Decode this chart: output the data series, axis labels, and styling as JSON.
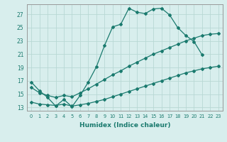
{
  "title": "",
  "xlabel": "Humidex (Indice chaleur)",
  "xlim": [
    -0.5,
    23.5
  ],
  "ylim": [
    12.5,
    28.5
  ],
  "xticks": [
    0,
    1,
    2,
    3,
    4,
    5,
    6,
    7,
    8,
    9,
    10,
    11,
    12,
    13,
    14,
    15,
    16,
    17,
    18,
    19,
    20,
    21,
    22,
    23
  ],
  "yticks": [
    13,
    15,
    17,
    19,
    21,
    23,
    25,
    27
  ],
  "bg_color": "#d8eeed",
  "grid_color": "#b8d8d4",
  "line_color": "#1a7a6e",
  "line1_x": [
    0,
    1,
    2,
    3,
    4,
    5,
    6,
    7,
    8,
    9,
    10,
    11,
    12,
    13,
    14,
    15,
    16,
    17,
    18,
    19,
    20,
    21
  ],
  "line1_y": [
    16.8,
    15.5,
    14.5,
    13.2,
    14.2,
    13.1,
    14.8,
    16.8,
    19.1,
    22.3,
    25.1,
    25.5,
    27.9,
    27.3,
    27.1,
    27.8,
    27.9,
    26.9,
    25.0,
    23.8,
    22.9,
    20.9
  ],
  "line2_x": [
    0,
    1,
    2,
    3,
    4,
    5,
    6,
    7,
    8,
    9,
    10,
    11,
    12,
    13,
    14,
    15,
    16,
    17,
    18,
    19,
    20,
    21,
    22,
    23
  ],
  "line2_y": [
    16.0,
    15.2,
    14.8,
    14.5,
    14.8,
    14.6,
    15.2,
    15.8,
    16.5,
    17.2,
    17.9,
    18.5,
    19.2,
    19.8,
    20.4,
    21.0,
    21.5,
    22.0,
    22.5,
    23.0,
    23.4,
    23.8,
    24.0,
    24.1
  ],
  "line3_x": [
    0,
    1,
    2,
    3,
    4,
    5,
    6,
    7,
    8,
    9,
    10,
    11,
    12,
    13,
    14,
    15,
    16,
    17,
    18,
    19,
    20,
    21,
    22,
    23
  ],
  "line3_y": [
    13.8,
    13.5,
    13.4,
    13.3,
    13.5,
    13.2,
    13.4,
    13.6,
    13.9,
    14.2,
    14.6,
    15.0,
    15.4,
    15.8,
    16.2,
    16.6,
    17.0,
    17.4,
    17.8,
    18.2,
    18.5,
    18.8,
    19.0,
    19.2
  ]
}
